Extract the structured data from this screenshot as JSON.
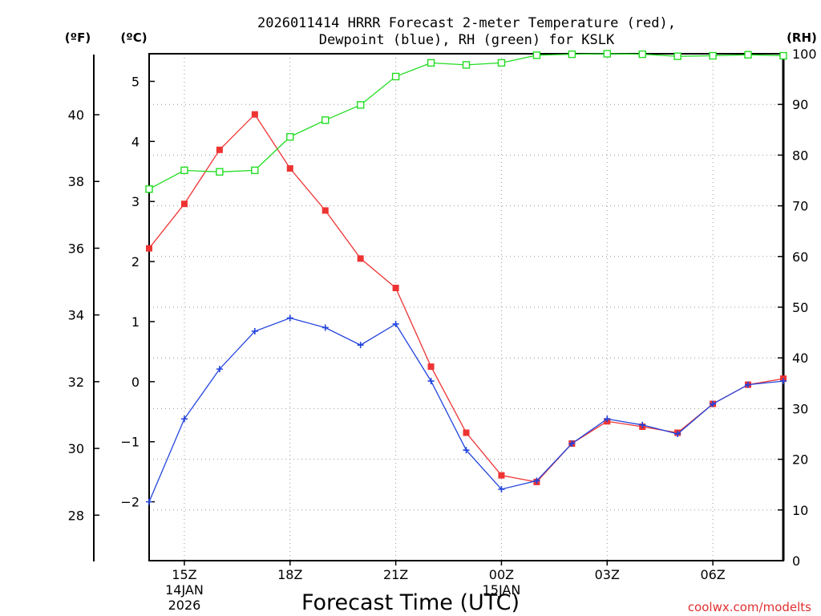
{
  "chart_data": {
    "type": "line",
    "title_line1": "2026011414 HRRR Forecast 2-meter Temperature (red),",
    "title_line2": "Dewpoint (blue), RH (green) for KSLK",
    "xlabel": "Forecast Time (UTC)",
    "unit_f": "(ºF)",
    "unit_c": "(ºC)",
    "unit_rh": "(RH)",
    "watermark": "coolwx.com/modelts",
    "x_hours": [
      14,
      15,
      16,
      17,
      18,
      19,
      20,
      21,
      22,
      23,
      24,
      25,
      26,
      27,
      28,
      29,
      30,
      31,
      32
    ],
    "x_ticks": [
      {
        "hour": 15,
        "label": "15Z",
        "date": "14JAN",
        "year": "2026"
      },
      {
        "hour": 18,
        "label": "18Z"
      },
      {
        "hour": 21,
        "label": "21Z"
      },
      {
        "hour": 24,
        "label": "00Z",
        "date": "15JAN"
      },
      {
        "hour": 27,
        "label": "03Z"
      },
      {
        "hour": 30,
        "label": "06Z"
      }
    ],
    "c_ticks": [
      {
        "v": -2,
        "label": "−2"
      },
      {
        "v": -1,
        "label": "−1"
      },
      {
        "v": 0,
        "label": "0"
      },
      {
        "v": 1,
        "label": "1"
      },
      {
        "v": 2,
        "label": "2"
      },
      {
        "v": 3,
        "label": "3"
      },
      {
        "v": 4,
        "label": "4"
      },
      {
        "v": 5,
        "label": "5"
      }
    ],
    "f_ticks": [
      {
        "v": 28,
        "label": "28"
      },
      {
        "v": 30,
        "label": "30"
      },
      {
        "v": 32,
        "label": "32"
      },
      {
        "v": 34,
        "label": "34"
      },
      {
        "v": 36,
        "label": "36"
      },
      {
        "v": 38,
        "label": "38"
      },
      {
        "v": 40,
        "label": "40"
      }
    ],
    "rh_ticks": [
      {
        "v": 0,
        "label": "0"
      },
      {
        "v": 10,
        "label": "10"
      },
      {
        "v": 20,
        "label": "20"
      },
      {
        "v": 30,
        "label": "30"
      },
      {
        "v": 40,
        "label": "40"
      },
      {
        "v": 50,
        "label": "50"
      },
      {
        "v": 60,
        "label": "60"
      },
      {
        "v": 70,
        "label": "70"
      },
      {
        "v": 80,
        "label": "80"
      },
      {
        "v": 90,
        "label": "90"
      },
      {
        "v": 100,
        "label": "100"
      }
    ],
    "xlim": [
      14,
      32
    ],
    "ylim_c": [
      -2.98,
      5.46
    ],
    "ylim_rh": [
      0,
      100
    ],
    "series": [
      {
        "name": "Temperature",
        "unit": "C",
        "color": "#ee3333",
        "marker": "square-filled",
        "values": [
          2.22,
          2.96,
          3.86,
          4.45,
          3.55,
          2.85,
          2.05,
          1.56,
          0.25,
          -0.85,
          -1.56,
          -1.67,
          -1.03,
          -0.66,
          -0.75,
          -0.85,
          -0.37,
          -0.05,
          0.05
        ]
      },
      {
        "name": "Dewpoint",
        "unit": "C",
        "color": "#2244dd",
        "marker": "plus",
        "values": [
          -2.0,
          -0.62,
          0.21,
          0.84,
          1.06,
          0.9,
          0.61,
          0.96,
          0.01,
          -1.14,
          -1.79,
          -1.65,
          -1.03,
          -0.62,
          -0.72,
          -0.87,
          -0.37,
          -0.05,
          0.01
        ]
      },
      {
        "name": "RH",
        "unit": "%",
        "color": "#22dd22",
        "marker": "square-open",
        "values": [
          73.3,
          77.0,
          76.7,
          77.0,
          83.6,
          86.9,
          89.9,
          95.5,
          98.2,
          97.8,
          98.2,
          99.7,
          99.9,
          100.0,
          99.9,
          99.5,
          99.6,
          99.8,
          99.6
        ]
      }
    ]
  }
}
